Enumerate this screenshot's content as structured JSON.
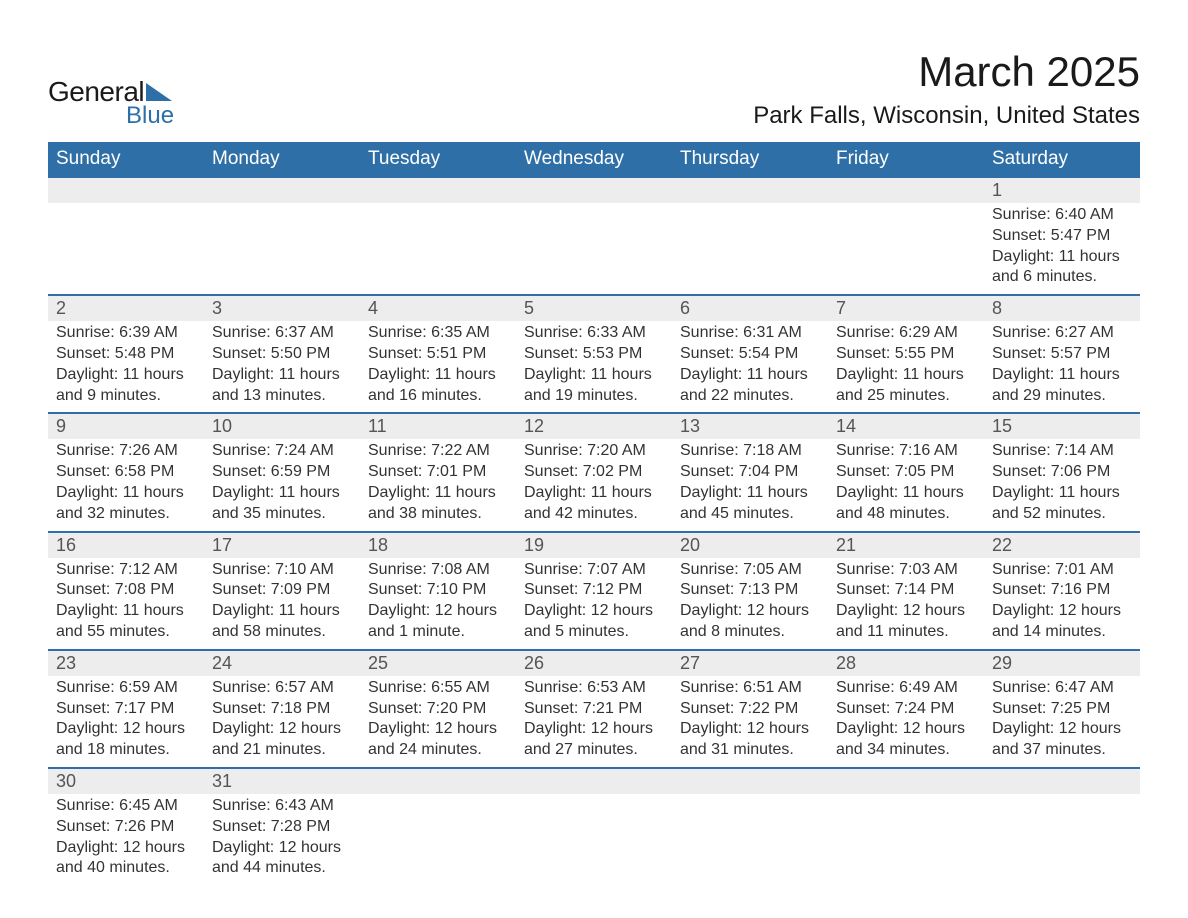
{
  "logo": {
    "text_top": "General",
    "text_bottom": "Blue",
    "accent_color": "#2e6fa7"
  },
  "title": "March 2025",
  "location": "Park Falls, Wisconsin, United States",
  "colors": {
    "header_bg": "#2e6fa7",
    "header_text": "#ffffff",
    "daynum_bg": "#ededed",
    "row_border": "#2e6fa7",
    "body_text": "#333333"
  },
  "day_headers": [
    "Sunday",
    "Monday",
    "Tuesday",
    "Wednesday",
    "Thursday",
    "Friday",
    "Saturday"
  ],
  "weeks": [
    [
      null,
      null,
      null,
      null,
      null,
      null,
      {
        "n": "1",
        "sr": "Sunrise: 6:40 AM",
        "ss": "Sunset: 5:47 PM",
        "d1": "Daylight: 11 hours",
        "d2": "and 6 minutes."
      }
    ],
    [
      {
        "n": "2",
        "sr": "Sunrise: 6:39 AM",
        "ss": "Sunset: 5:48 PM",
        "d1": "Daylight: 11 hours",
        "d2": "and 9 minutes."
      },
      {
        "n": "3",
        "sr": "Sunrise: 6:37 AM",
        "ss": "Sunset: 5:50 PM",
        "d1": "Daylight: 11 hours",
        "d2": "and 13 minutes."
      },
      {
        "n": "4",
        "sr": "Sunrise: 6:35 AM",
        "ss": "Sunset: 5:51 PM",
        "d1": "Daylight: 11 hours",
        "d2": "and 16 minutes."
      },
      {
        "n": "5",
        "sr": "Sunrise: 6:33 AM",
        "ss": "Sunset: 5:53 PM",
        "d1": "Daylight: 11 hours",
        "d2": "and 19 minutes."
      },
      {
        "n": "6",
        "sr": "Sunrise: 6:31 AM",
        "ss": "Sunset: 5:54 PM",
        "d1": "Daylight: 11 hours",
        "d2": "and 22 minutes."
      },
      {
        "n": "7",
        "sr": "Sunrise: 6:29 AM",
        "ss": "Sunset: 5:55 PM",
        "d1": "Daylight: 11 hours",
        "d2": "and 25 minutes."
      },
      {
        "n": "8",
        "sr": "Sunrise: 6:27 AM",
        "ss": "Sunset: 5:57 PM",
        "d1": "Daylight: 11 hours",
        "d2": "and 29 minutes."
      }
    ],
    [
      {
        "n": "9",
        "sr": "Sunrise: 7:26 AM",
        "ss": "Sunset: 6:58 PM",
        "d1": "Daylight: 11 hours",
        "d2": "and 32 minutes."
      },
      {
        "n": "10",
        "sr": "Sunrise: 7:24 AM",
        "ss": "Sunset: 6:59 PM",
        "d1": "Daylight: 11 hours",
        "d2": "and 35 minutes."
      },
      {
        "n": "11",
        "sr": "Sunrise: 7:22 AM",
        "ss": "Sunset: 7:01 PM",
        "d1": "Daylight: 11 hours",
        "d2": "and 38 minutes."
      },
      {
        "n": "12",
        "sr": "Sunrise: 7:20 AM",
        "ss": "Sunset: 7:02 PM",
        "d1": "Daylight: 11 hours",
        "d2": "and 42 minutes."
      },
      {
        "n": "13",
        "sr": "Sunrise: 7:18 AM",
        "ss": "Sunset: 7:04 PM",
        "d1": "Daylight: 11 hours",
        "d2": "and 45 minutes."
      },
      {
        "n": "14",
        "sr": "Sunrise: 7:16 AM",
        "ss": "Sunset: 7:05 PM",
        "d1": "Daylight: 11 hours",
        "d2": "and 48 minutes."
      },
      {
        "n": "15",
        "sr": "Sunrise: 7:14 AM",
        "ss": "Sunset: 7:06 PM",
        "d1": "Daylight: 11 hours",
        "d2": "and 52 minutes."
      }
    ],
    [
      {
        "n": "16",
        "sr": "Sunrise: 7:12 AM",
        "ss": "Sunset: 7:08 PM",
        "d1": "Daylight: 11 hours",
        "d2": "and 55 minutes."
      },
      {
        "n": "17",
        "sr": "Sunrise: 7:10 AM",
        "ss": "Sunset: 7:09 PM",
        "d1": "Daylight: 11 hours",
        "d2": "and 58 minutes."
      },
      {
        "n": "18",
        "sr": "Sunrise: 7:08 AM",
        "ss": "Sunset: 7:10 PM",
        "d1": "Daylight: 12 hours",
        "d2": "and 1 minute."
      },
      {
        "n": "19",
        "sr": "Sunrise: 7:07 AM",
        "ss": "Sunset: 7:12 PM",
        "d1": "Daylight: 12 hours",
        "d2": "and 5 minutes."
      },
      {
        "n": "20",
        "sr": "Sunrise: 7:05 AM",
        "ss": "Sunset: 7:13 PM",
        "d1": "Daylight: 12 hours",
        "d2": "and 8 minutes."
      },
      {
        "n": "21",
        "sr": "Sunrise: 7:03 AM",
        "ss": "Sunset: 7:14 PM",
        "d1": "Daylight: 12 hours",
        "d2": "and 11 minutes."
      },
      {
        "n": "22",
        "sr": "Sunrise: 7:01 AM",
        "ss": "Sunset: 7:16 PM",
        "d1": "Daylight: 12 hours",
        "d2": "and 14 minutes."
      }
    ],
    [
      {
        "n": "23",
        "sr": "Sunrise: 6:59 AM",
        "ss": "Sunset: 7:17 PM",
        "d1": "Daylight: 12 hours",
        "d2": "and 18 minutes."
      },
      {
        "n": "24",
        "sr": "Sunrise: 6:57 AM",
        "ss": "Sunset: 7:18 PM",
        "d1": "Daylight: 12 hours",
        "d2": "and 21 minutes."
      },
      {
        "n": "25",
        "sr": "Sunrise: 6:55 AM",
        "ss": "Sunset: 7:20 PM",
        "d1": "Daylight: 12 hours",
        "d2": "and 24 minutes."
      },
      {
        "n": "26",
        "sr": "Sunrise: 6:53 AM",
        "ss": "Sunset: 7:21 PM",
        "d1": "Daylight: 12 hours",
        "d2": "and 27 minutes."
      },
      {
        "n": "27",
        "sr": "Sunrise: 6:51 AM",
        "ss": "Sunset: 7:22 PM",
        "d1": "Daylight: 12 hours",
        "d2": "and 31 minutes."
      },
      {
        "n": "28",
        "sr": "Sunrise: 6:49 AM",
        "ss": "Sunset: 7:24 PM",
        "d1": "Daylight: 12 hours",
        "d2": "and 34 minutes."
      },
      {
        "n": "29",
        "sr": "Sunrise: 6:47 AM",
        "ss": "Sunset: 7:25 PM",
        "d1": "Daylight: 12 hours",
        "d2": "and 37 minutes."
      }
    ],
    [
      {
        "n": "30",
        "sr": "Sunrise: 6:45 AM",
        "ss": "Sunset: 7:26 PM",
        "d1": "Daylight: 12 hours",
        "d2": "and 40 minutes."
      },
      {
        "n": "31",
        "sr": "Sunrise: 6:43 AM",
        "ss": "Sunset: 7:28 PM",
        "d1": "Daylight: 12 hours",
        "d2": "and 44 minutes."
      },
      null,
      null,
      null,
      null,
      null
    ]
  ]
}
